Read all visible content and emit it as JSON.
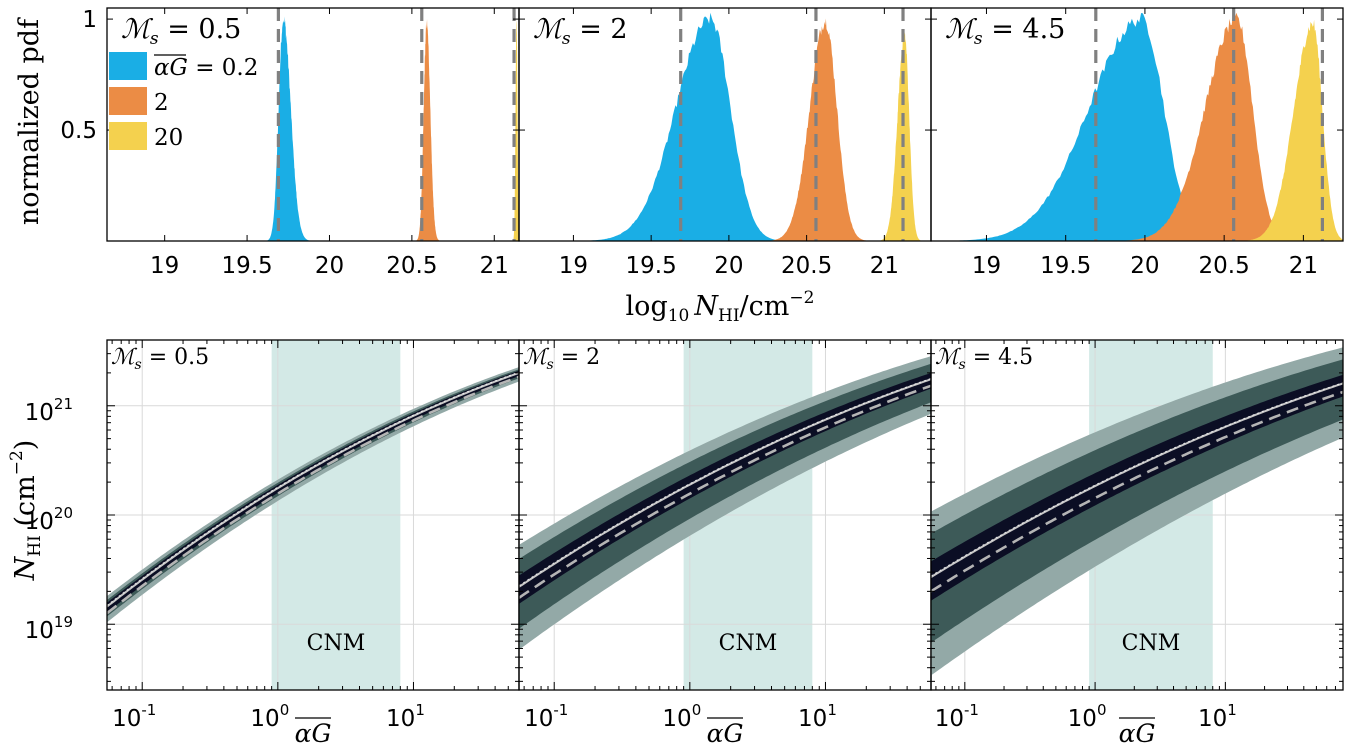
{
  "figure": {
    "top_ylabel": "normalized pdf",
    "top_xlabel_main": "log",
    "top_xlabel_sub": "10",
    "top_xlabel_var": "N",
    "top_xlabel_varsub": "HI",
    "top_xlabel_unit": "/cm",
    "top_xlabel_exp": "−2",
    "bottom_ylabel_var": "N",
    "bottom_ylabel_sub": "HI",
    "bottom_ylabel_unit": " (cm",
    "bottom_ylabel_exp": "−2",
    "bottom_ylabel_close": ")",
    "bottom_xlabel": "αG",
    "region_label": "CNM"
  },
  "colors": {
    "blue": "#1aaee5",
    "orange": "#eb8c45",
    "yellow": "#f4d14e",
    "dashed": "#808080",
    "cnm": "#d3e9e6",
    "band_outer": "#93a9a7",
    "band_mid": "#3d5a58",
    "band_inner": "#0b0e24",
    "grid": "#d9d9d9"
  },
  "chart_data": [
    {
      "type": "area",
      "panel": "top-left",
      "annotation": "ℳ = 0.5",
      "annotation_sub": "s",
      "xlim": [
        18.65,
        21.15
      ],
      "ylim": [
        0,
        1.05
      ],
      "xticks": [
        "19",
        "19.5",
        "20",
        "20.5",
        "21"
      ],
      "xtick_values": [
        19,
        19.5,
        20,
        20.5,
        21
      ],
      "yticks": [
        "0.5",
        "1"
      ],
      "ytick_values": [
        0.5,
        1
      ],
      "legend": {
        "position": "top-left",
        "entries": [
          "αG = 0.2",
          "2",
          "20"
        ]
      },
      "dashed_lines": [
        19.69,
        20.56,
        21.12
      ],
      "series": [
        {
          "name": "0.2",
          "color": "blue",
          "peak_x": 19.72,
          "peak_y": 1.0,
          "sigma_left": 0.028,
          "sigma_right": 0.045
        },
        {
          "name": "2",
          "color": "orange",
          "peak_x": 20.59,
          "peak_y": 0.98,
          "sigma_left": 0.018,
          "sigma_right": 0.022
        },
        {
          "name": "20",
          "color": "yellow",
          "peak_x": 21.135,
          "peak_y": 0.99,
          "sigma_left": 0.006,
          "sigma_right": 0.006
        }
      ]
    },
    {
      "type": "area",
      "panel": "top-middle",
      "annotation": "ℳ = 2",
      "annotation_sub": "s",
      "xlim": [
        18.65,
        21.3
      ],
      "ylim": [
        0,
        1.05
      ],
      "xticks": [
        "19",
        "19.5",
        "20",
        "20.5",
        "21"
      ],
      "xtick_values": [
        19,
        19.5,
        20,
        20.5,
        21
      ],
      "dashed_lines": [
        19.69,
        20.56,
        21.12
      ],
      "series": [
        {
          "name": "0.2",
          "color": "blue",
          "peak_x": 19.88,
          "peak_y": 1.0,
          "sigma_left": 0.22,
          "sigma_right": 0.13
        },
        {
          "name": "2",
          "color": "orange",
          "peak_x": 20.62,
          "peak_y": 0.99,
          "sigma_left": 0.1,
          "sigma_right": 0.075
        },
        {
          "name": "20",
          "color": "yellow",
          "peak_x": 21.13,
          "peak_y": 0.93,
          "sigma_left": 0.045,
          "sigma_right": 0.03
        }
      ]
    },
    {
      "type": "area",
      "panel": "top-right",
      "annotation": "ℳ = 4.5",
      "annotation_sub": "s",
      "xlim": [
        18.65,
        21.25
      ],
      "ylim": [
        0,
        1.05
      ],
      "xticks": [
        "19",
        "19.5",
        "20",
        "20.5",
        "21"
      ],
      "xtick_values": [
        19,
        19.5,
        20,
        20.5,
        21
      ],
      "dashed_lines": [
        19.69,
        20.56,
        21.12
      ],
      "series": [
        {
          "name": "0.2",
          "color": "blue",
          "peak_x": 19.98,
          "peak_y": 1.0,
          "sigma_left": 0.33,
          "sigma_right": 0.14
        },
        {
          "name": "2",
          "color": "orange",
          "peak_x": 20.58,
          "peak_y": 1.0,
          "sigma_left": 0.2,
          "sigma_right": 0.1
        },
        {
          "name": "20",
          "color": "yellow",
          "peak_x": 21.06,
          "peak_y": 0.98,
          "sigma_left": 0.12,
          "sigma_right": 0.06
        }
      ]
    },
    {
      "type": "area",
      "panel": "bottom-left",
      "annotation": "ℳ = 0.5",
      "annotation_sub": "s",
      "xscale": "log",
      "yscale": "log",
      "xlim": [
        0.055,
        60
      ],
      "ylim": [
        2.5e+18,
        4e+21
      ],
      "xticks": [
        "10",
        "10",
        "10"
      ],
      "xtick_exps": [
        "-1",
        "0",
        "1"
      ],
      "xtick_values": [
        0.1,
        1,
        10
      ],
      "yticks": [
        "10",
        "10",
        "10"
      ],
      "ytick_exps": [
        "19",
        "20",
        "21"
      ],
      "ytick_values": [
        1e+19,
        1e+20,
        1e+21
      ],
      "grid": true,
      "cnm_region": [
        0.9,
        8
      ],
      "curve": {
        "x0": 0.055,
        "y0": 1.45e+19,
        "x1": 60,
        "y1": 2e+21,
        "log_curvature": 0.38
      },
      "bands_dex": {
        "outer": 0.12,
        "mid": 0.075,
        "inner": 0.045
      },
      "dashed_offset_dex": -0.06
    },
    {
      "type": "area",
      "panel": "bottom-middle",
      "annotation": "ℳ = 2",
      "annotation_sub": "s",
      "xscale": "log",
      "yscale": "log",
      "xlim": [
        0.055,
        60
      ],
      "ylim": [
        2.5e+18,
        4e+21
      ],
      "xticks": [
        "10",
        "10",
        "10"
      ],
      "xtick_exps": [
        "-1",
        "0",
        "1"
      ],
      "xtick_values": [
        0.1,
        1,
        10
      ],
      "grid": true,
      "cnm_region": [
        0.9,
        8
      ],
      "curve": {
        "x0": 0.055,
        "y0": 2.2e+19,
        "x1": 60,
        "y1": 1.75e+21,
        "log_curvature": 0.32
      },
      "bands_dex": {
        "outer": 0.48,
        "mid": 0.32,
        "inner": 0.13
      },
      "dashed_offset_dex": -0.1
    },
    {
      "type": "area",
      "panel": "bottom-right",
      "annotation": "ℳ = 4.5",
      "annotation_sub": "s",
      "xscale": "log",
      "yscale": "log",
      "xlim": [
        0.055,
        80
      ],
      "ylim": [
        2.5e+18,
        4e+21
      ],
      "xticks": [
        "10",
        "10",
        "10"
      ],
      "xtick_exps": [
        "-1",
        "0",
        "1"
      ],
      "xtick_values": [
        0.1,
        1,
        10
      ],
      "grid": true,
      "cnm_region": [
        0.9,
        8
      ],
      "curve": {
        "x0": 0.055,
        "y0": 2.7e+19,
        "x1": 80,
        "y1": 1.6e+21,
        "log_curvature": 0.3
      },
      "bands_dex": {
        "outer": 0.75,
        "mid": 0.5,
        "inner": 0.18
      },
      "dashed_offset_dex": -0.13
    }
  ]
}
